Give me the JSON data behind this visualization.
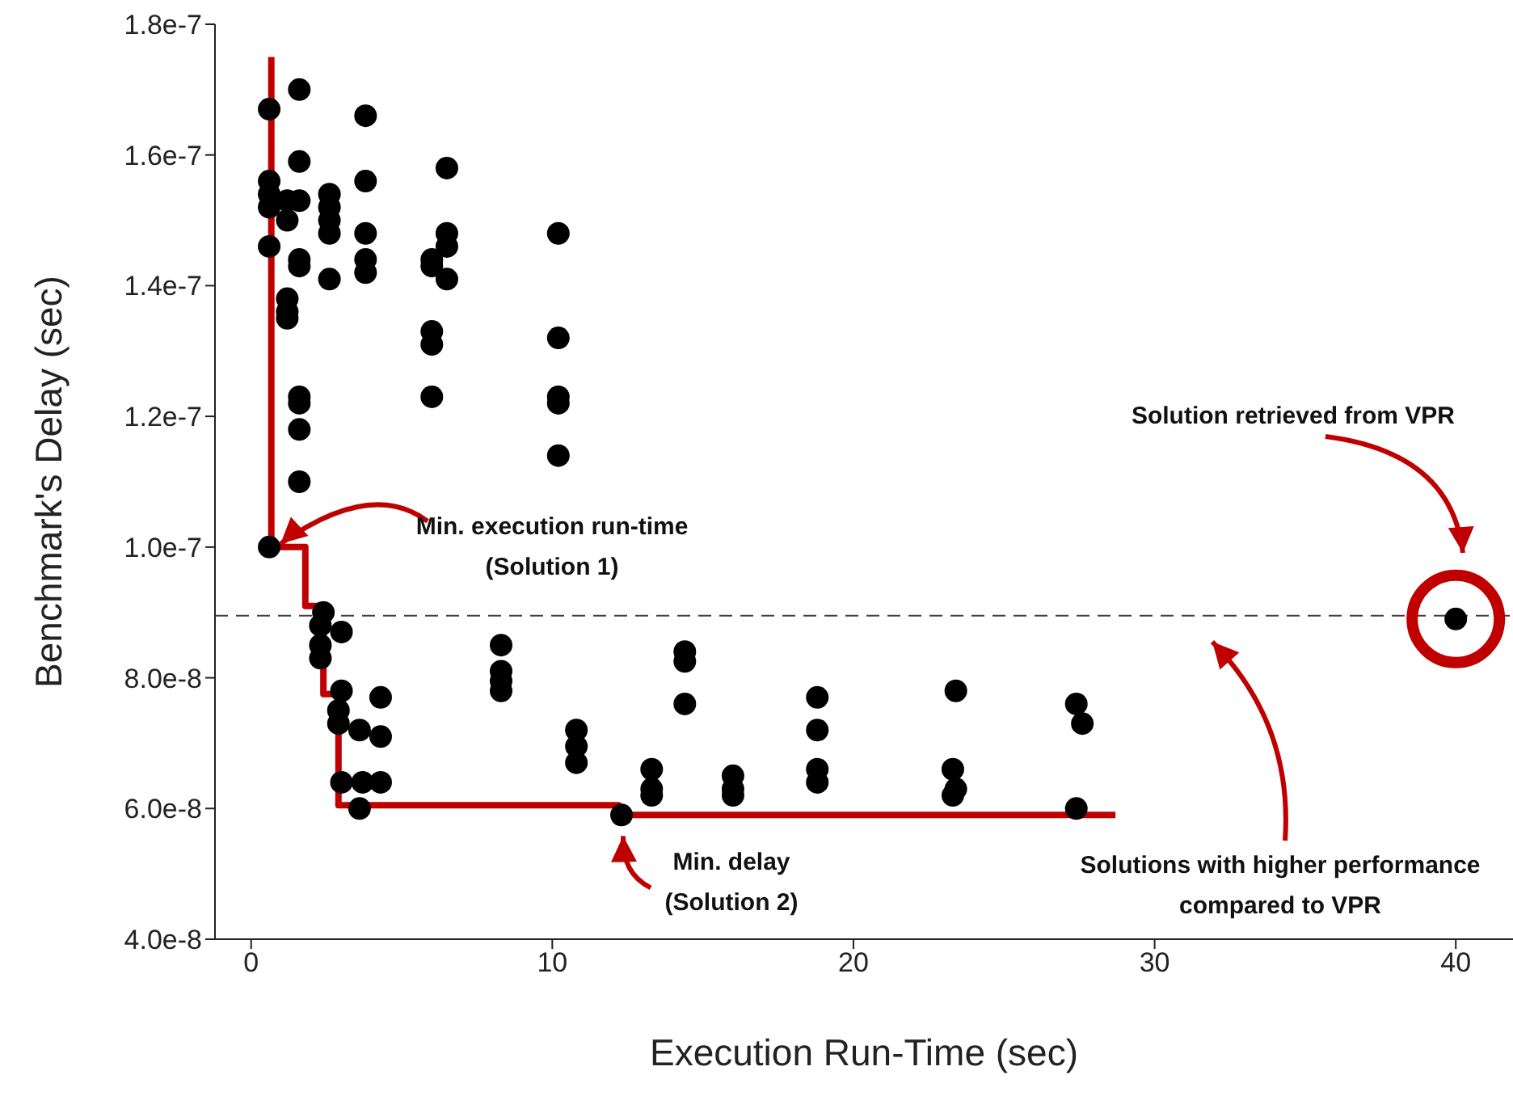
{
  "chart_data": {
    "type": "scatter",
    "xlabel": "Execution Run-Time (sec)",
    "ylabel": "Benchmark's Delay (sec)",
    "xlim": [
      -1.2,
      41.9
    ],
    "xticks": [
      0,
      10,
      20,
      30,
      40
    ],
    "ylim": [
      4e-08,
      1.8e-07
    ],
    "yticks": [
      {
        "value": 4e-08,
        "label": "4.0e-8"
      },
      {
        "value": 6e-08,
        "label": "6.0e-8"
      },
      {
        "value": 8e-08,
        "label": "8.0e-8"
      },
      {
        "value": 1e-07,
        "label": "1.0e-7"
      },
      {
        "value": 1.2e-07,
        "label": "1.2e-7"
      },
      {
        "value": 1.4e-07,
        "label": "1.4e-7"
      },
      {
        "value": 1.6e-07,
        "label": "1.6e-7"
      },
      {
        "value": 1.8e-07,
        "label": "1.8e-7"
      }
    ],
    "series": [
      {
        "marker": "circle",
        "color": "#000000",
        "x": [
          0.6,
          0.6,
          0.6,
          0.6,
          0.6,
          0.6,
          1.2,
          1.2,
          1.2,
          1.2,
          1.2,
          1.6,
          1.6,
          1.6,
          1.6,
          1.6,
          1.6,
          1.6,
          1.6,
          1.6,
          2.6,
          2.6,
          2.6,
          2.6,
          2.6,
          3.8,
          3.8,
          3.8,
          3.8,
          3.8,
          6.0,
          6.0,
          6.0,
          6.0,
          6.0,
          6.5,
          6.5,
          6.5,
          6.5,
          10.2,
          10.2,
          10.2,
          10.2,
          10.2,
          2.4,
          2.3,
          2.3,
          2.3,
          3.0,
          3.0,
          2.9,
          2.9,
          4.3,
          4.3,
          3.6,
          3.0,
          3.7,
          4.3,
          3.6,
          8.3,
          8.3,
          8.3,
          8.3,
          10.8,
          10.8,
          10.8,
          12.3,
          13.3,
          13.3,
          13.3,
          14.4,
          14.4,
          14.4,
          16.0,
          16.0,
          16.0,
          18.8,
          18.8,
          18.8,
          18.8,
          23.4,
          23.3,
          23.4,
          23.3,
          27.4,
          27.6,
          27.4,
          40
        ],
        "values": [
          1.67e-07,
          1.56e-07,
          1.54e-07,
          1.52e-07,
          1.46e-07,
          1e-07,
          1.53e-07,
          1.5e-07,
          1.38e-07,
          1.36e-07,
          1.35e-07,
          1.7e-07,
          1.59e-07,
          1.53e-07,
          1.44e-07,
          1.43e-07,
          1.23e-07,
          1.22e-07,
          1.18e-07,
          1.1e-07,
          1.54e-07,
          1.52e-07,
          1.5e-07,
          1.48e-07,
          1.41e-07,
          1.66e-07,
          1.56e-07,
          1.48e-07,
          1.44e-07,
          1.42e-07,
          1.44e-07,
          1.43e-07,
          1.33e-07,
          1.31e-07,
          1.23e-07,
          1.58e-07,
          1.48e-07,
          1.46e-07,
          1.41e-07,
          1.48e-07,
          1.32e-07,
          1.23e-07,
          1.22e-07,
          1.14e-07,
          9e-08,
          8.8e-08,
          8.5e-08,
          8.3e-08,
          8.7e-08,
          7.8e-08,
          7.5e-08,
          7.3e-08,
          7.7e-08,
          7.1e-08,
          7.2e-08,
          6.4e-08,
          6.4e-08,
          6.4e-08,
          6e-08,
          8.5e-08,
          8.1e-08,
          7.95e-08,
          7.8e-08,
          7.2e-08,
          6.95e-08,
          6.7e-08,
          5.9e-08,
          6.6e-08,
          6.3e-08,
          6.2e-08,
          8.4e-08,
          8.25e-08,
          7.6e-08,
          6.5e-08,
          6.3e-08,
          6.2e-08,
          7.7e-08,
          7.2e-08,
          6.6e-08,
          6.4e-08,
          7.8e-08,
          6.6e-08,
          6.3e-08,
          6.2e-08,
          7.6e-08,
          7.3e-08,
          6e-08,
          8.9e-08
        ]
      },
      {
        "type": "line",
        "marker": "none",
        "color": "#c00000",
        "line_style": "solid",
        "x": [
          0.67,
          0.67,
          1.8,
          1.8,
          2.4,
          2.4,
          2.9,
          2.9,
          12.2,
          12.2,
          28.7
        ],
        "values": [
          1.75e-07,
          1e-07,
          1e-07,
          9.1e-08,
          9.1e-08,
          7.75e-08,
          7.75e-08,
          6.05e-08,
          6.05e-08,
          5.9e-08,
          5.9e-08
        ]
      }
    ],
    "ref_lines": [
      {
        "axis": "y",
        "value": 8.95e-08,
        "color": "#404040",
        "line_style": "dashed"
      }
    ],
    "annotations": [
      {
        "text": "Min. execution run-time\n(Solution 1)",
        "x": 0.6,
        "y": 1e-07
      },
      {
        "text": "Min. delay\n(Solution 2)",
        "x": 12.3,
        "y": 5.9e-08
      },
      "Solution retrieved from VPR",
      "Solutions with higher performance\ncompared to VPR"
    ]
  }
}
